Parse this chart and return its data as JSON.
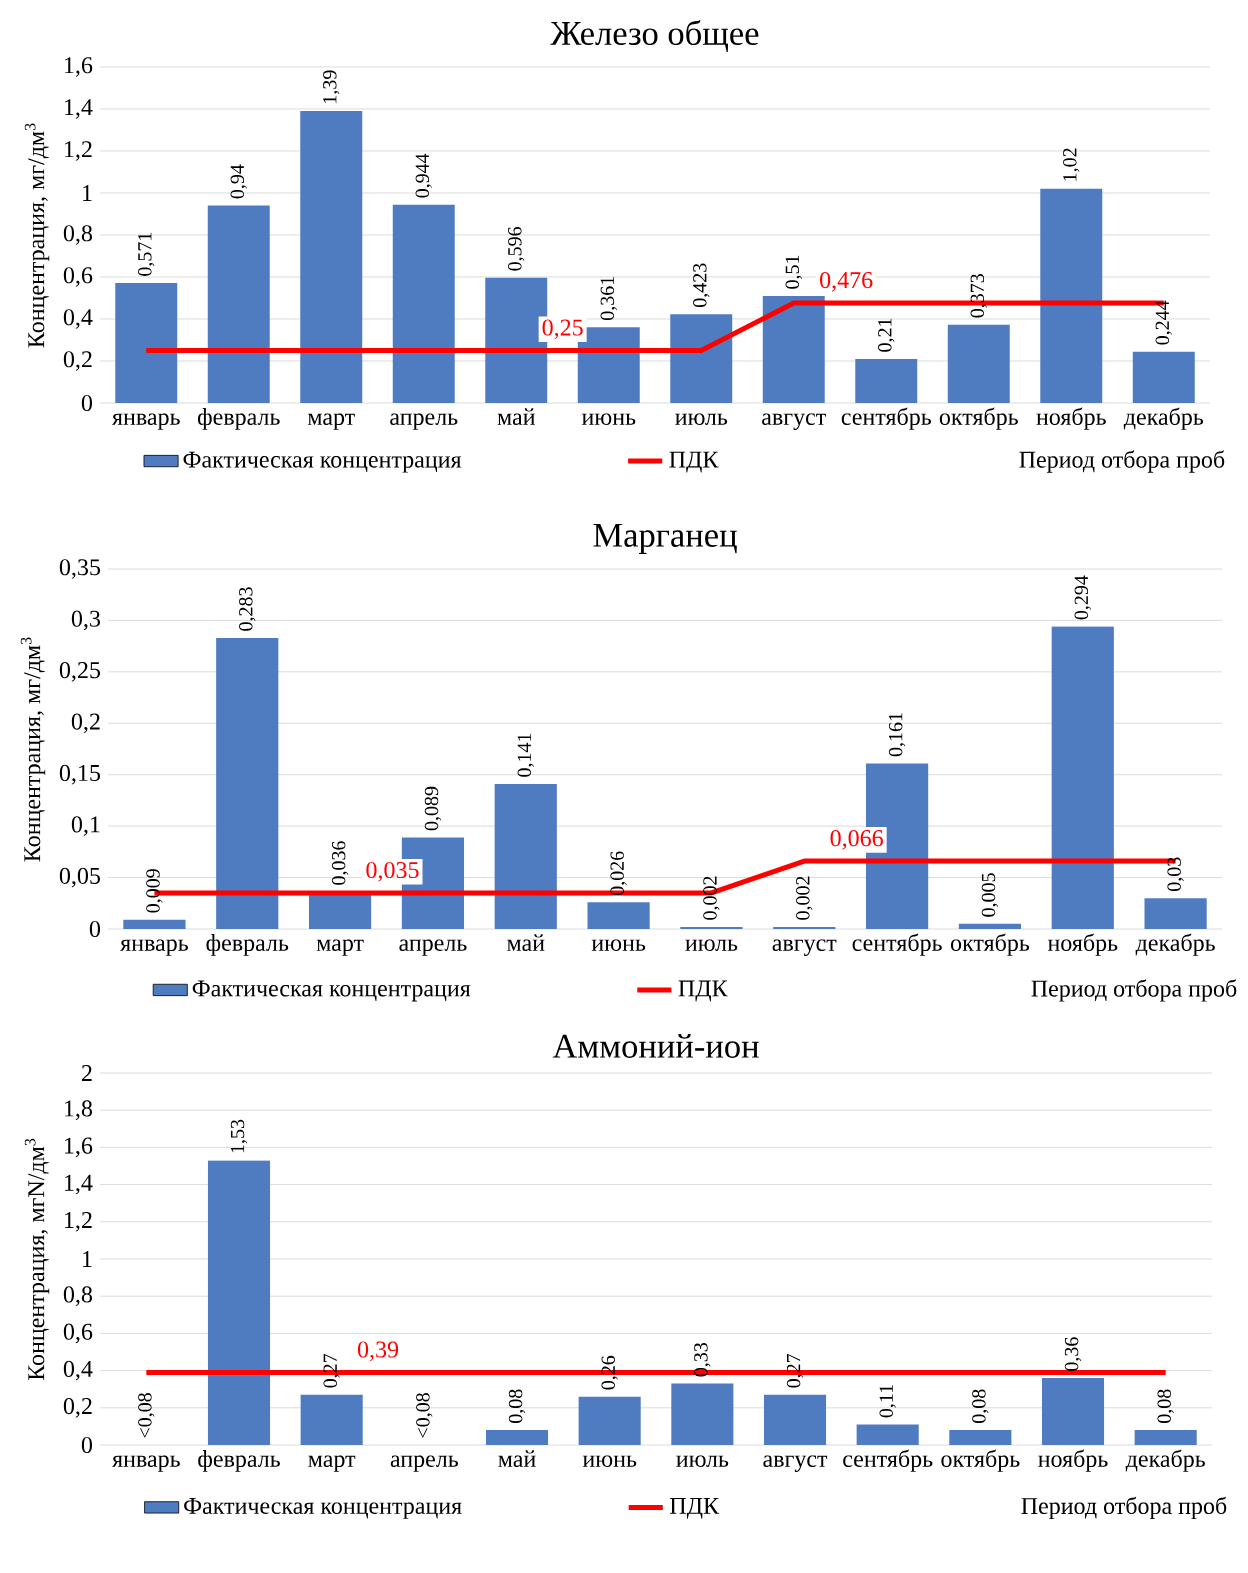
{
  "chart_data": [
    {
      "type": "bar",
      "title": "Железо общее",
      "xlabel": "Период отбора проб",
      "ylabel": "Концентрация,  мг/дм$^{3}$",
      "categories": [
        "январь",
        "февраль",
        "март",
        "апрель",
        "май",
        "июнь",
        "июль",
        "август",
        "сентябрь",
        "октябрь",
        "ноябрь",
        "декабрь"
      ],
      "ylim": [
        0,
        1.6
      ],
      "yticks": [
        {
          "value": 0,
          "label": "0"
        },
        {
          "value": 0.2,
          "label": "0,2"
        },
        {
          "value": 0.4,
          "label": "0,4"
        },
        {
          "value": 0.6,
          "label": "0,6"
        },
        {
          "value": 0.8,
          "label": "0,8"
        },
        {
          "value": 1,
          "label": "1"
        },
        {
          "value": 1.2,
          "label": "1,2"
        },
        {
          "value": 1.4,
          "label": "1,4"
        },
        {
          "value": 1.6,
          "label": "1,6"
        }
      ],
      "grid": "y",
      "legend": "bottom",
      "marker": "none",
      "series": [
        {
          "name": "Фактическая концентрация",
          "color": "#4f7cc0",
          "values": [
            0.571,
            0.94,
            1.39,
            0.944,
            0.596,
            0.361,
            0.423,
            0.51,
            0.21,
            0.373,
            1.02,
            0.244
          ],
          "value_labels": [
            "0,571",
            "0,94",
            "1,39",
            "0,944",
            "0,596",
            "0,361",
            "0,423",
            "0,51",
            "0,21",
            "0,373",
            "1,02",
            "0,244"
          ]
        },
        {
          "type": "line",
          "name": "ПДК",
          "color": "#ff0000",
          "values": [
            0.25,
            0.25,
            0.25,
            0.25,
            0.25,
            0.25,
            0.25,
            0.476,
            0.476,
            0.476,
            0.476,
            0.476
          ],
          "value_labels": [
            null,
            null,
            null,
            null,
            "0,25",
            null,
            null,
            "0,476",
            null,
            null,
            null,
            null
          ]
        }
      ]
    },
    {
      "type": "bar",
      "title": "Марганец",
      "xlabel": "Период отбора проб",
      "ylabel": "Концентрация,  мг/дм$^{3}$",
      "categories": [
        "январь",
        "февраль",
        "март",
        "апрель",
        "май",
        "июнь",
        "июль",
        "август",
        "сентябрь",
        "октябрь",
        "ноябрь",
        "декабрь"
      ],
      "ylim": [
        0,
        0.35
      ],
      "yticks": [
        {
          "value": 0,
          "label": "0"
        },
        {
          "value": 0.05,
          "label": "0,05"
        },
        {
          "value": 0.1,
          "label": "0,1"
        },
        {
          "value": 0.15,
          "label": "0,15"
        },
        {
          "value": 0.2,
          "label": "0,2"
        },
        {
          "value": 0.25,
          "label": "0,25"
        },
        {
          "value": 0.3,
          "label": "0,3"
        },
        {
          "value": 0.35,
          "label": "0,35"
        }
      ],
      "grid": "y",
      "legend": "bottom",
      "marker": "none",
      "series": [
        {
          "name": "Фактическая концентрация",
          "color": "#4f7cc0",
          "values": [
            0.009,
            0.283,
            0.036,
            0.089,
            0.141,
            0.026,
            0.002,
            0.002,
            0.161,
            0.005,
            0.294,
            0.03
          ],
          "value_labels": [
            "0,009",
            "0,283",
            "0,036",
            "0,089",
            "0,141",
            "0,026",
            "0,002",
            "0,002",
            "0,161",
            "0,005",
            "0,294",
            "0,03"
          ]
        },
        {
          "type": "line",
          "name": "ПДК",
          "color": "#ff0000",
          "values": [
            0.035,
            0.035,
            0.035,
            0.035,
            0.035,
            0.035,
            0.035,
            0.066,
            0.066,
            0.066,
            0.066,
            0.066
          ],
          "value_labels": [
            null,
            null,
            "0,035",
            null,
            null,
            null,
            null,
            "0,066",
            null,
            null,
            null,
            null
          ]
        }
      ]
    },
    {
      "type": "bar",
      "title": "Аммоний-ион",
      "xlabel": "Период отбора проб",
      "ylabel": "Концентрация,  мгN/дм$^{3}$",
      "categories": [
        "январь",
        "февраль",
        "март",
        "апрель",
        "май",
        "июнь",
        "июль",
        "август",
        "сентябрь",
        "октябрь",
        "ноябрь",
        "декабрь"
      ],
      "ylim": [
        0,
        2
      ],
      "yticks": [
        {
          "value": 0,
          "label": "0"
        },
        {
          "value": 0.2,
          "label": "0,2"
        },
        {
          "value": 0.4,
          "label": "0,4"
        },
        {
          "value": 0.6,
          "label": "0,6"
        },
        {
          "value": 0.8,
          "label": "0,8"
        },
        {
          "value": 1,
          "label": "1"
        },
        {
          "value": 1.2,
          "label": "1,2"
        },
        {
          "value": 1.4,
          "label": "1,4"
        },
        {
          "value": 1.6,
          "label": "1,6"
        },
        {
          "value": 1.8,
          "label": "1,8"
        },
        {
          "value": 2,
          "label": "2"
        }
      ],
      "grid": "y",
      "legend": "bottom",
      "marker": "none",
      "series": [
        {
          "name": "Фактическая концентрация",
          "color": "#4f7cc0",
          "values": [
            null,
            1.53,
            0.27,
            null,
            0.08,
            0.26,
            0.33,
            0.27,
            0.11,
            0.08,
            0.36,
            0.08
          ],
          "value_labels": [
            "<0,08",
            "1,53",
            "0,27",
            "<0,08",
            "0,08",
            "0,26",
            "0,33",
            "0,27",
            "0,11",
            "0,08",
            "0,36",
            "0,08"
          ]
        },
        {
          "type": "line",
          "name": "ПДК",
          "color": "#ff0000",
          "values": [
            0.39,
            0.39,
            0.39,
            0.39,
            0.39,
            0.39,
            0.39,
            0.39,
            0.39,
            0.39,
            0.39,
            0.39
          ],
          "value_labels": [
            null,
            null,
            "0,39",
            null,
            null,
            null,
            null,
            null,
            null,
            null,
            null,
            null
          ]
        }
      ]
    }
  ]
}
